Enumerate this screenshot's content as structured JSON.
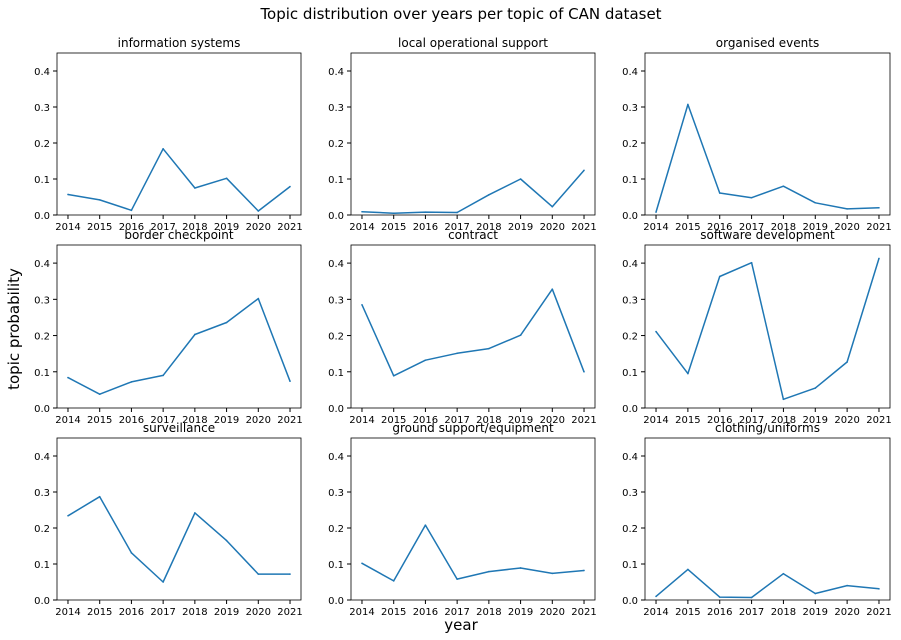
{
  "figure": {
    "suptitle": "Topic distribution over years per topic of CAN dataset",
    "xlabel": "year",
    "ylabel": "topic probability"
  },
  "colors": {
    "line": "#1f77b4",
    "axes": "#000000",
    "background": "#ffffff"
  },
  "chart_data": [
    {
      "type": "line",
      "title": "information systems",
      "x": [
        "2014",
        "2015",
        "2016",
        "2017",
        "2018",
        "2019",
        "2020",
        "2021"
      ],
      "values": [
        0.057,
        0.042,
        0.013,
        0.184,
        0.075,
        0.102,
        0.011,
        0.079
      ],
      "ylim": [
        0,
        0.45
      ],
      "yticks": [
        "0.0",
        "0.1",
        "0.2",
        "0.3",
        "0.4"
      ]
    },
    {
      "type": "line",
      "title": "local operational support",
      "x": [
        "2014",
        "2015",
        "2016",
        "2017",
        "2018",
        "2019",
        "2020",
        "2021"
      ],
      "values": [
        0.009,
        0.005,
        0.008,
        0.007,
        0.056,
        0.1,
        0.023,
        0.124
      ],
      "ylim": [
        0,
        0.45
      ],
      "yticks": [
        "0.0",
        "0.1",
        "0.2",
        "0.3",
        "0.4"
      ]
    },
    {
      "type": "line",
      "title": "organised events",
      "x": [
        "2014",
        "2015",
        "2016",
        "2017",
        "2018",
        "2019",
        "2020",
        "2021"
      ],
      "values": [
        0.008,
        0.307,
        0.061,
        0.048,
        0.08,
        0.034,
        0.017,
        0.02
      ],
      "ylim": [
        0,
        0.45
      ],
      "yticks": [
        "0.0",
        "0.1",
        "0.2",
        "0.3",
        "0.4"
      ]
    },
    {
      "type": "line",
      "title": "border checkpoint",
      "x": [
        "2014",
        "2015",
        "2016",
        "2017",
        "2018",
        "2019",
        "2020",
        "2021"
      ],
      "values": [
        0.084,
        0.038,
        0.072,
        0.09,
        0.203,
        0.236,
        0.302,
        0.074
      ],
      "ylim": [
        0,
        0.45
      ],
      "yticks": [
        "0.0",
        "0.1",
        "0.2",
        "0.3",
        "0.4"
      ]
    },
    {
      "type": "line",
      "title": "contract",
      "x": [
        "2014",
        "2015",
        "2016",
        "2017",
        "2018",
        "2019",
        "2020",
        "2021"
      ],
      "values": [
        0.285,
        0.089,
        0.132,
        0.151,
        0.164,
        0.201,
        0.328,
        0.1
      ],
      "ylim": [
        0,
        0.45
      ],
      "yticks": [
        "0.0",
        "0.1",
        "0.2",
        "0.3",
        "0.4"
      ]
    },
    {
      "type": "line",
      "title": "software development",
      "x": [
        "2014",
        "2015",
        "2016",
        "2017",
        "2018",
        "2019",
        "2020",
        "2021"
      ],
      "values": [
        0.211,
        0.095,
        0.363,
        0.401,
        0.024,
        0.055,
        0.127,
        0.413
      ],
      "ylim": [
        0,
        0.45
      ],
      "yticks": [
        "0.0",
        "0.1",
        "0.2",
        "0.3",
        "0.4"
      ]
    },
    {
      "type": "line",
      "title": "surveillance",
      "x": [
        "2014",
        "2015",
        "2016",
        "2017",
        "2018",
        "2019",
        "2020",
        "2021"
      ],
      "values": [
        0.234,
        0.287,
        0.131,
        0.05,
        0.242,
        0.165,
        0.072,
        0.072
      ],
      "ylim": [
        0,
        0.45
      ],
      "yticks": [
        "0.0",
        "0.1",
        "0.2",
        "0.3",
        "0.4"
      ]
    },
    {
      "type": "line",
      "title": "ground support/equipment",
      "x": [
        "2014",
        "2015",
        "2016",
        "2017",
        "2018",
        "2019",
        "2020",
        "2021"
      ],
      "values": [
        0.102,
        0.053,
        0.208,
        0.058,
        0.079,
        0.089,
        0.074,
        0.082
      ],
      "ylim": [
        0,
        0.45
      ],
      "yticks": [
        "0.0",
        "0.1",
        "0.2",
        "0.3",
        "0.4"
      ]
    },
    {
      "type": "line",
      "title": "clothing/uniforms",
      "x": [
        "2014",
        "2015",
        "2016",
        "2017",
        "2018",
        "2019",
        "2020",
        "2021"
      ],
      "values": [
        0.01,
        0.085,
        0.008,
        0.007,
        0.073,
        0.018,
        0.04,
        0.031
      ],
      "ylim": [
        0,
        0.45
      ],
      "yticks": [
        "0.0",
        "0.1",
        "0.2",
        "0.3",
        "0.4"
      ]
    }
  ]
}
